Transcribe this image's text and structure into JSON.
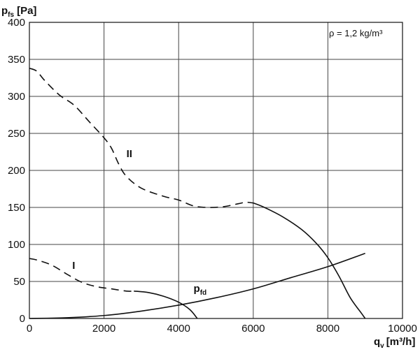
{
  "chart_data": {
    "type": "line",
    "ylabel_main": "p",
    "ylabel_sub": "fs",
    "ylabel_unit": "[Pa]",
    "xlabel_main": "q",
    "xlabel_sub": "v",
    "xlabel_unit": "[m³/h]",
    "annotation": "ρ = 1,2 kg/m³",
    "xlim": [
      0,
      10000
    ],
    "ylim": [
      0,
      400
    ],
    "x_ticks": [
      0,
      2000,
      4000,
      6000,
      8000,
      10000
    ],
    "y_ticks": [
      0,
      50,
      100,
      150,
      200,
      250,
      300,
      350,
      400
    ],
    "x_tick_labels": [
      "0",
      "2000",
      "4000",
      "6000",
      "8000",
      "10000"
    ],
    "y_tick_labels": [
      "0",
      "50",
      "100",
      "150",
      "200",
      "250",
      "300",
      "350",
      "400"
    ],
    "grid": true,
    "series": [
      {
        "name": "II",
        "style": "dashed",
        "points": [
          [
            0,
            338
          ],
          [
            200,
            334
          ],
          [
            400,
            322
          ],
          [
            800,
            302
          ],
          [
            1200,
            288
          ],
          [
            1600,
            266
          ],
          [
            2000,
            244
          ],
          [
            2200,
            230
          ],
          [
            2400,
            208
          ],
          [
            2600,
            192
          ],
          [
            3000,
            176
          ],
          [
            3600,
            165
          ],
          [
            4000,
            160
          ],
          [
            4400,
            152
          ],
          [
            4800,
            150
          ],
          [
            5200,
            151
          ],
          [
            5600,
            155
          ],
          [
            5800,
            157
          ],
          [
            6000,
            156
          ]
        ]
      },
      {
        "name": "II",
        "style": "solid",
        "points": [
          [
            6000,
            156
          ],
          [
            6300,
            150
          ],
          [
            6800,
            137
          ],
          [
            7300,
            120
          ],
          [
            7700,
            101
          ],
          [
            8000,
            82
          ],
          [
            8300,
            57
          ],
          [
            8600,
            28
          ],
          [
            8900,
            7
          ],
          [
            9000,
            0
          ]
        ]
      },
      {
        "name": "I",
        "style": "dashed",
        "points": [
          [
            0,
            81
          ],
          [
            200,
            79
          ],
          [
            600,
            72
          ],
          [
            1000,
            60
          ],
          [
            1400,
            49
          ],
          [
            1800,
            43
          ],
          [
            2200,
            40
          ],
          [
            2600,
            37
          ],
          [
            2800,
            37
          ]
        ]
      },
      {
        "name": "I",
        "style": "solid",
        "points": [
          [
            2800,
            37
          ],
          [
            3200,
            35
          ],
          [
            3600,
            30
          ],
          [
            4000,
            22
          ],
          [
            4300,
            12
          ],
          [
            4500,
            0
          ]
        ]
      },
      {
        "name": "p_fd",
        "style": "solid",
        "points": [
          [
            0,
            0
          ],
          [
            1000,
            1
          ],
          [
            2000,
            4
          ],
          [
            3000,
            10
          ],
          [
            4000,
            18
          ],
          [
            5000,
            28
          ],
          [
            6000,
            40
          ],
          [
            7000,
            55
          ],
          [
            8000,
            70
          ],
          [
            9000,
            88
          ]
        ]
      }
    ],
    "curve_labels": [
      {
        "text": "II",
        "x": 2600,
        "y": 218
      },
      {
        "text": "I",
        "x": 1150,
        "y": 67
      },
      {
        "text": "p",
        "sub": "fd",
        "x": 4400,
        "y": 36
      }
    ]
  }
}
